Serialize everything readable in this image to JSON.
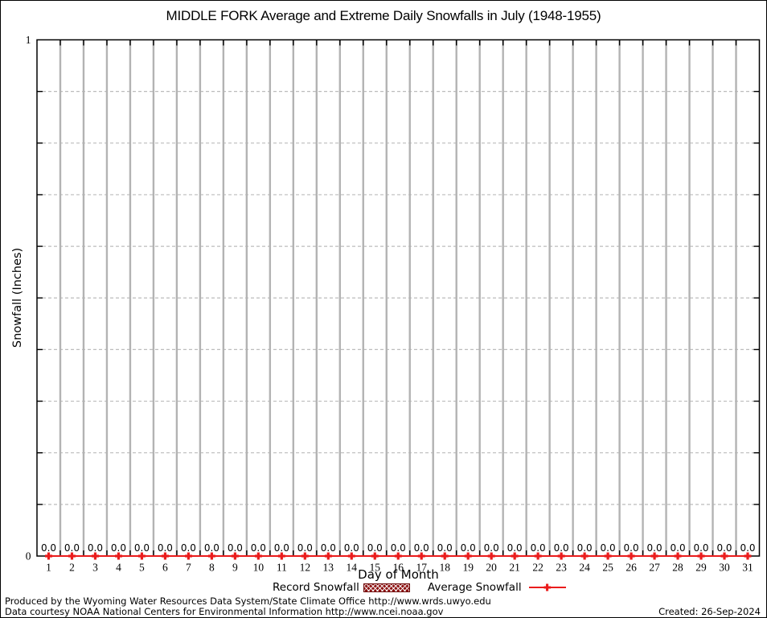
{
  "chart_data": {
    "type": "line",
    "title": "MIDDLE FORK Average and Extreme Daily Snowfalls in July (1948-1955)",
    "xlabel": "Day of Month",
    "ylabel": "Snowfall (Inches)",
    "ylim": [
      0,
      1
    ],
    "y_divisions": 10,
    "ytick_labels": [
      {
        "value": 0,
        "label": "0"
      },
      {
        "value": 1,
        "label": "1"
      }
    ],
    "x": [
      1,
      2,
      3,
      4,
      5,
      6,
      7,
      8,
      9,
      10,
      11,
      12,
      13,
      14,
      15,
      16,
      17,
      18,
      19,
      20,
      21,
      22,
      23,
      24,
      25,
      26,
      27,
      28,
      29,
      30,
      31
    ],
    "series": [
      {
        "name": "Record Snowfall",
        "style": "hatched-bar",
        "color": "#8d1212",
        "values": [
          0,
          0,
          0,
          0,
          0,
          0,
          0,
          0,
          0,
          0,
          0,
          0,
          0,
          0,
          0,
          0,
          0,
          0,
          0,
          0,
          0,
          0,
          0,
          0,
          0,
          0,
          0,
          0,
          0,
          0,
          0
        ]
      },
      {
        "name": "Average Snowfall",
        "style": "line-marker",
        "color": "#ea1c1c",
        "values": [
          0,
          0,
          0,
          0,
          0,
          0,
          0,
          0,
          0,
          0,
          0,
          0,
          0,
          0,
          0,
          0,
          0,
          0,
          0,
          0,
          0,
          0,
          0,
          0,
          0,
          0,
          0,
          0,
          0,
          0,
          0
        ]
      }
    ],
    "point_labels": [
      "0.0",
      "0.0",
      "0.0",
      "0.0",
      "0.0",
      "0.0",
      "0.0",
      "0.0",
      "0.0",
      "0.0",
      "0.0",
      "0.0",
      "0.0",
      "0.0",
      "0.0",
      "0.0",
      "0.0",
      "0.0",
      "0.0",
      "0.0",
      "0.0",
      "0.0",
      "0.0",
      "0.0",
      "0.0",
      "0.0",
      "0.0",
      "0.0",
      "0.0",
      "0.0",
      "0.0"
    ],
    "grid": {
      "vertical": "solid",
      "horizontal": "dashed",
      "legend_position": "bottom"
    }
  },
  "legend": {
    "items": [
      {
        "label": "Record Snowfall"
      },
      {
        "label": "Average Snowfall"
      }
    ]
  },
  "footer": {
    "line1": "Produced by the Wyoming Water Resources Data System/State Climate Office http://www.wrds.uwyo.edu",
    "line2": "Data courtesy NOAA National Centers for Environmental Information http://www.ncei.noaa.gov",
    "created": "Created: 26-Sep-2024"
  }
}
